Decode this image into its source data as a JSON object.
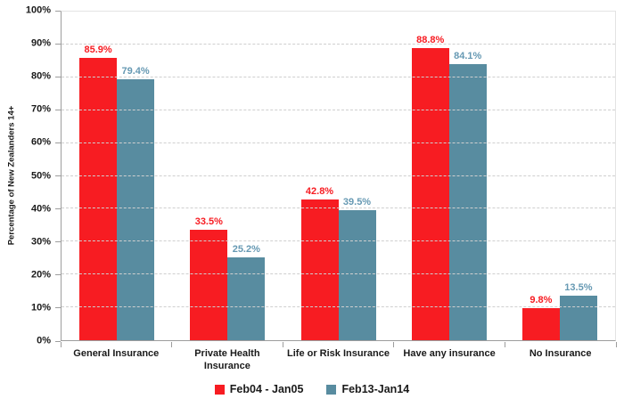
{
  "chart_data": {
    "type": "bar",
    "title": "",
    "xlabel": "",
    "ylabel": "Percentage of New Zealanders 14+",
    "ylim": [
      0,
      100
    ],
    "grid_step": 10,
    "grid": true,
    "grid_style": "dashed",
    "legend_position": "bottom",
    "yticks": [
      "0%",
      "10%",
      "20%",
      "30%",
      "40%",
      "50%",
      "60%",
      "70%",
      "80%",
      "90%",
      "100%"
    ],
    "categories": [
      "General Insurance",
      "Private Health Insurance",
      "Life or Risk Insurance",
      "Have any insurance",
      "No Insurance"
    ],
    "series": [
      {
        "name": "Feb04 - Jan05",
        "color": "#f71c22",
        "label_color": "#f71c22",
        "values": [
          85.9,
          33.5,
          42.8,
          88.8,
          9.8
        ],
        "labels": [
          "85.9%",
          "33.5%",
          "42.8%",
          "88.8%",
          "9.8%"
        ]
      },
      {
        "name": "Feb13-Jan14",
        "color": "#588ca0",
        "label_color": "#6699b3",
        "values": [
          79.4,
          25.2,
          39.5,
          84.1,
          13.5
        ],
        "labels": [
          "79.4%",
          "25.2%",
          "39.5%",
          "84.1%",
          "13.5%"
        ]
      }
    ],
    "colors": {
      "axis": "#9d9d9d",
      "border": "#e3e3e3",
      "gridline": "#cfcfcf",
      "text": "#1a1a1a"
    }
  }
}
